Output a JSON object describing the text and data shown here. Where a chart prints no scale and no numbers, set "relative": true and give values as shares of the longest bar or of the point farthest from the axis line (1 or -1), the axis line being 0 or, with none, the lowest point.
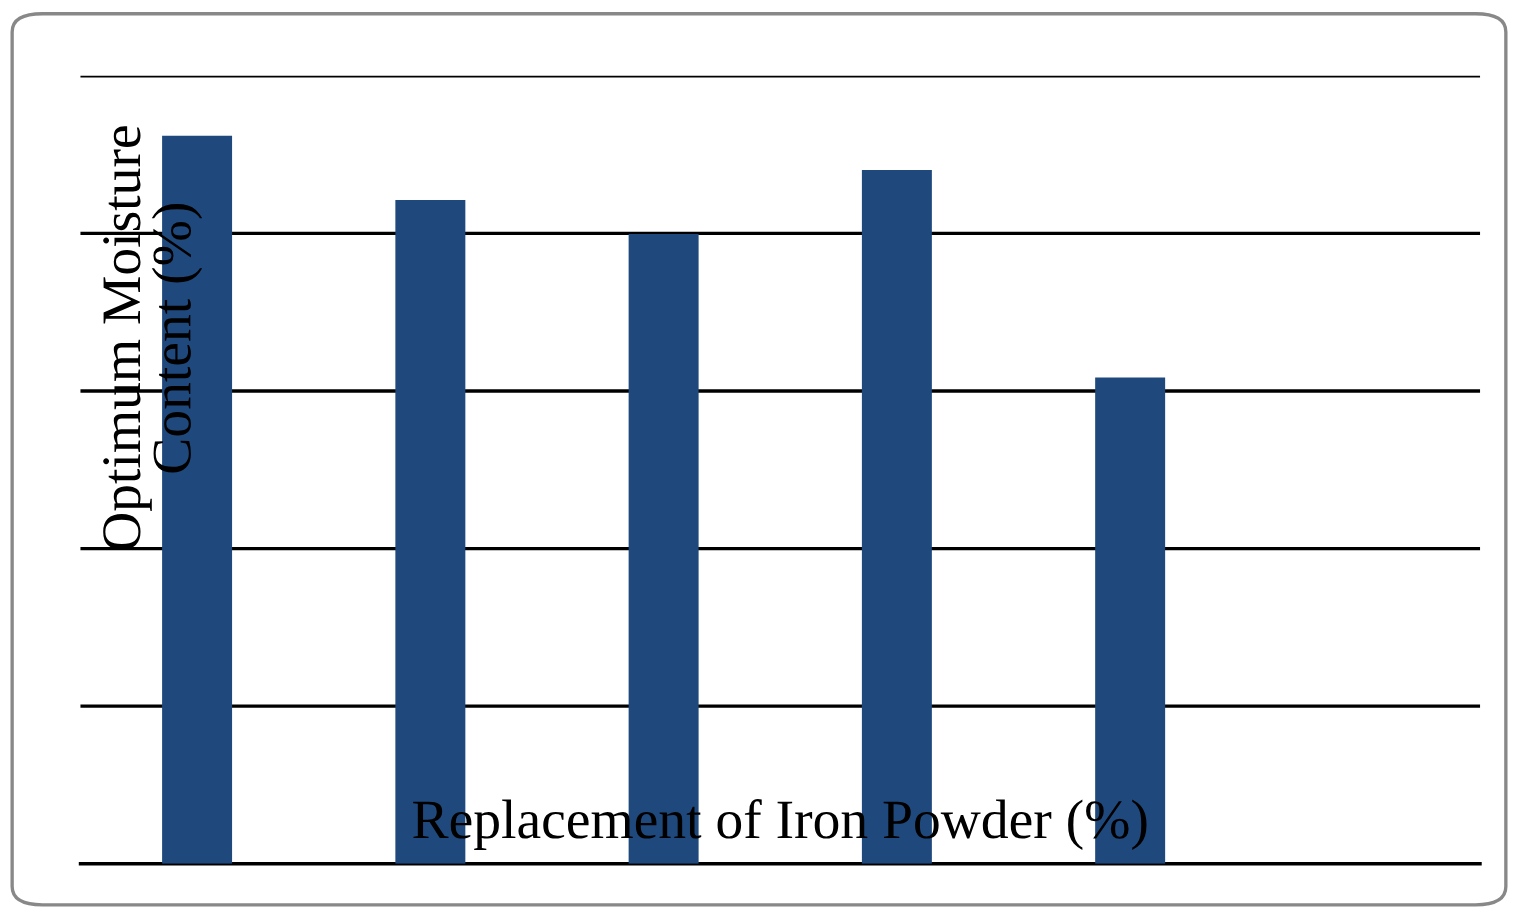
{
  "chart_data": {
    "type": "bar",
    "relative": true,
    "xlabel": "Replacement of Iron Powder (%)",
    "ylabel": "Optimum Moisture\nContent (%)",
    "categories": [
      null,
      null,
      null,
      null,
      null
    ],
    "values": [
      1,
      0.912,
      0.865,
      0.953,
      0.668
    ],
    "color": "#1f497d",
    "grid": "y"
  }
}
